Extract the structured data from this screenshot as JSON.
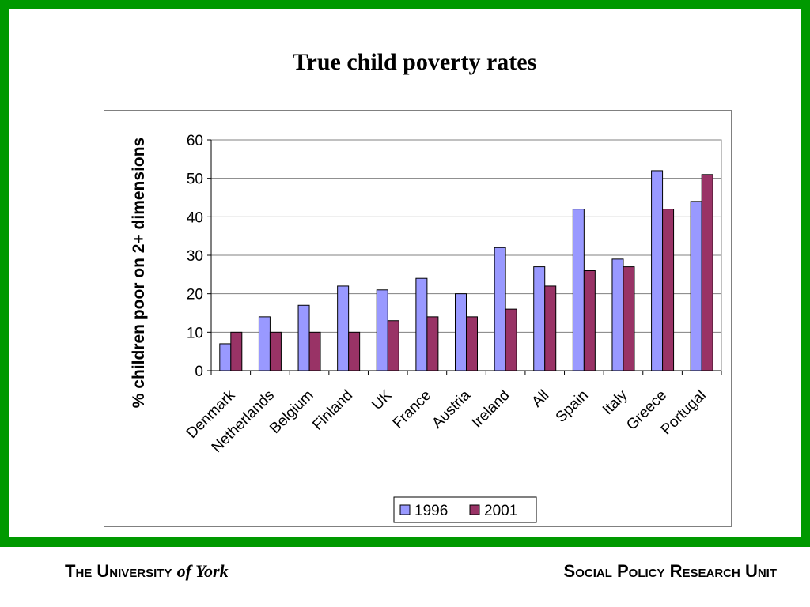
{
  "slide": {
    "title": "True child poverty rates",
    "frame_color": "#009900"
  },
  "footer": {
    "left_main": "The University",
    "left_italic": "of York",
    "right": "Social Policy Research Unit"
  },
  "chart_data": {
    "type": "bar",
    "categories": [
      "Denmark",
      "Netherlands",
      "Belgium",
      "Finland",
      "UK",
      "France",
      "Austria",
      "Ireland",
      "All",
      "Spain",
      "Italy",
      "Greece",
      "Portugal"
    ],
    "series": [
      {
        "name": "1996",
        "color": "#9999ff",
        "values": [
          7,
          14,
          17,
          22,
          21,
          24,
          20,
          32,
          27,
          42,
          29,
          52,
          44
        ]
      },
      {
        "name": "2001",
        "color": "#993366",
        "values": [
          10,
          10,
          10,
          10,
          13,
          14,
          14,
          16,
          22,
          26,
          27,
          42,
          51
        ]
      }
    ],
    "title": "",
    "xlabel": "",
    "ylabel": "% children poor on 2+ dimensions",
    "ylim": [
      0,
      60
    ],
    "yticks": [
      "0",
      "10",
      "20",
      "30",
      "40",
      "50",
      "60"
    ],
    "grid": true,
    "legend": "bottom-center"
  }
}
